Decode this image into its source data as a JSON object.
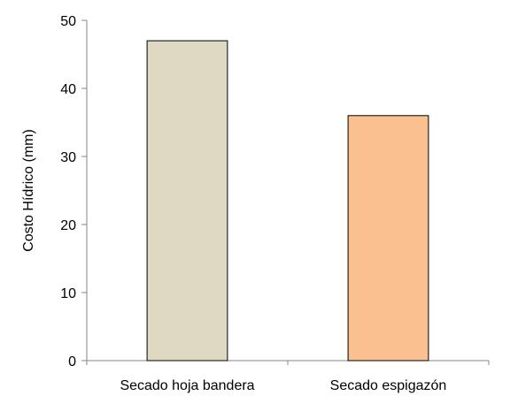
{
  "chart_data": {
    "type": "bar",
    "categories": [
      "Secado hoja bandera",
      "Secado espigazón"
    ],
    "values": [
      47,
      36
    ],
    "colors": [
      "#DDD9C3",
      "#FAC090"
    ],
    "xlabel": "",
    "ylabel": "Costo Hídrico (mm)",
    "ylim": [
      0,
      50
    ],
    "yticks": [
      0,
      10,
      20,
      30,
      40,
      50
    ],
    "grid": false,
    "legend": "none"
  }
}
